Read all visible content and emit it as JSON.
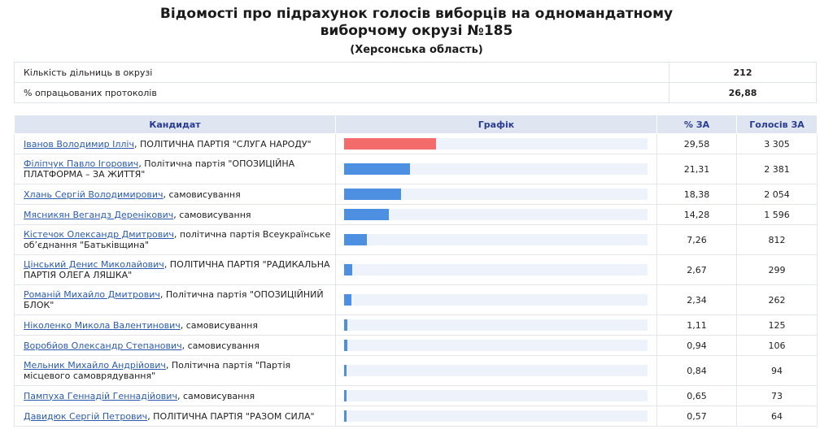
{
  "header": {
    "title_line1": "Відомості про підрахунок голосів виборців на одномандатному",
    "title_line2": "виборчому окрузі №185",
    "subtitle": "(Херсонська область)"
  },
  "summary": {
    "stations_label": "Кількість дільниць в окрузі",
    "stations_value": "212",
    "processed_label": "% опрацьованих протоколів",
    "processed_value": "26,88"
  },
  "table": {
    "headers": {
      "candidate": "Кандидат",
      "graph": "Графік",
      "percent": "% ЗА",
      "votes": "Голосів ЗА"
    },
    "rows": [
      {
        "name": "Іванов Володимир Ілліч",
        "party": ", ПОЛІТИЧНА ПАРТІЯ \"СЛУГА НАРОДУ\"",
        "percent": "29,58",
        "votes": "3 305",
        "share": 29.58
      },
      {
        "name": "Філіпчук Павло Ігорович",
        "party": ", Політична партія \"ОПОЗИЦІЙНА ПЛАТФОРМА – ЗА ЖИТТЯ\"",
        "percent": "21,31",
        "votes": "2 381",
        "share": 21.31
      },
      {
        "name": "Хлань Сергій Володимирович",
        "party": ", самовисування",
        "percent": "18,38",
        "votes": "2 054",
        "share": 18.38
      },
      {
        "name": "Мясникян Вегандз Деренікович",
        "party": ", самовисування",
        "percent": "14,28",
        "votes": "1 596",
        "share": 14.28
      },
      {
        "name": "Кістечок Олександр Дмитрович",
        "party": ", політична партія Всеукраїнське об’єднання \"Батьківщина\"",
        "percent": "7,26",
        "votes": "812",
        "share": 7.26
      },
      {
        "name": "Цінський Денис Миколайович",
        "party": ", ПОЛІТИЧНА ПАРТІЯ \"РАДИКАЛЬНА ПАРТІЯ ОЛЕГА ЛЯШКА\"",
        "percent": "2,67",
        "votes": "299",
        "share": 2.67
      },
      {
        "name": "Романій Михайло Дмитрович",
        "party": ", Політична партія \"ОПОЗИЦІЙНИЙ БЛОК\"",
        "percent": "2,34",
        "votes": "262",
        "share": 2.34
      },
      {
        "name": "Ніколенко Микола Валентинович",
        "party": ", самовисування",
        "percent": "1,11",
        "votes": "125",
        "share": 1.11
      },
      {
        "name": "Воробйов Олександр Степанович",
        "party": ", самовисування",
        "percent": "0,94",
        "votes": "106",
        "share": 0.94
      },
      {
        "name": "Мельник Михайло Андрійович",
        "party": ", Політична партія \"Партія місцевого самоврядування\"",
        "percent": "0,84",
        "votes": "94",
        "share": 0.84
      },
      {
        "name": "Пампуха Геннадій Геннадійович",
        "party": ", самовисування",
        "percent": "0,65",
        "votes": "73",
        "share": 0.65
      },
      {
        "name": "Давидюк Сергій Петрович",
        "party": ", ПОЛІТИЧНА ПАРТІЯ \"РАЗОМ СИЛА\"",
        "percent": "0,57",
        "votes": "64",
        "share": 0.57
      }
    ]
  },
  "colors": {
    "lead_bar": "#f46b6b",
    "bar": "#4d8fe0",
    "track": "#eef2fa",
    "header_bg": "#dfe6f2",
    "header_text": "#2a3b93",
    "link": "#2a5bb0"
  }
}
